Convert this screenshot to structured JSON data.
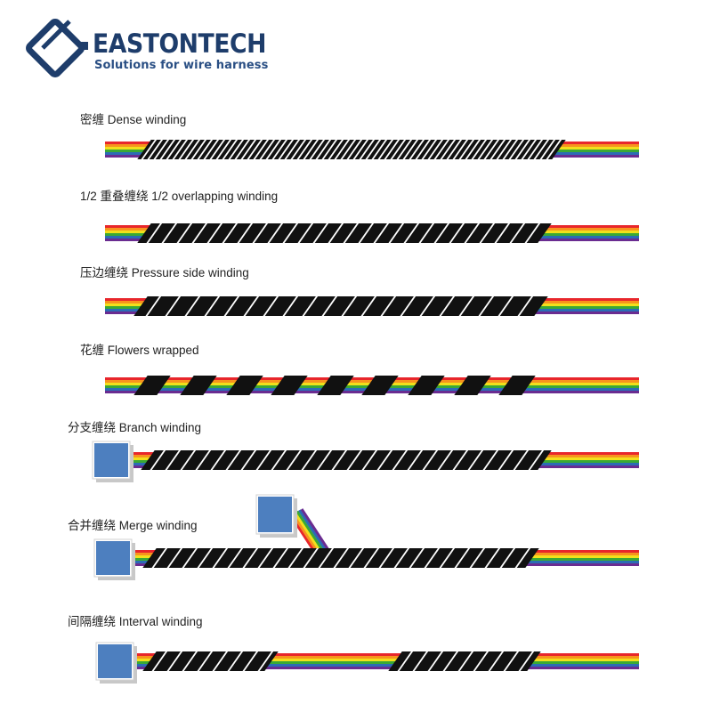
{
  "header": {
    "brand": "EASTONTECH",
    "tagline": "Solutions for wire harness",
    "logo_icon": "eastontech-logo-mark",
    "brand_color": "#1e3d6b"
  },
  "diagrams": [
    {
      "key": "dense",
      "label": "密缠 Dense winding"
    },
    {
      "key": "half_overlap",
      "label": "1/2 重叠缠绕 1/2 overlapping winding"
    },
    {
      "key": "pressure_side",
      "label": "压边缠绕 Pressure side winding"
    },
    {
      "key": "flowers",
      "label": "花缠 Flowers wrapped"
    },
    {
      "key": "branch",
      "label": "分支缠绕 Branch winding"
    },
    {
      "key": "merge",
      "label": "合并缠绕 Merge winding"
    },
    {
      "key": "interval",
      "label": "间隔缠绕 Interval winding"
    }
  ],
  "colors": {
    "wire_stripes": [
      "#e8262b",
      "#f7941d",
      "#f2e01b",
      "#3aa935",
      "#2b6cb5",
      "#6a2c91"
    ],
    "tape": "#111111",
    "connector": "#4d7fbf"
  }
}
